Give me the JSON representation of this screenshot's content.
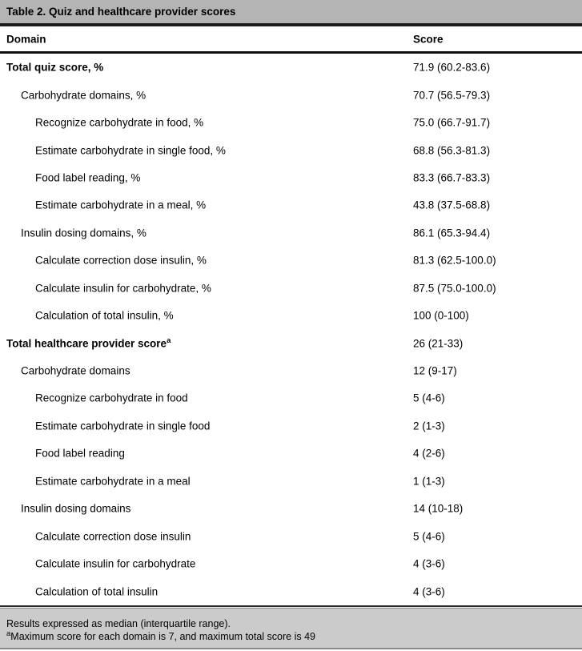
{
  "table": {
    "title": "Table 2. Quiz and healthcare provider scores",
    "columns": [
      "Domain",
      "Score"
    ]
  },
  "rows": [
    {
      "label": "Total quiz score, %",
      "score": "71.9 (60.2-83.6)",
      "level": 0,
      "bold": true
    },
    {
      "label": "Carbohydrate domains, %",
      "score": "70.7 (56.5-79.3)",
      "level": 1,
      "bold": false
    },
    {
      "label": "Recognize carbohydrate in food, %",
      "score": "75.0 (66.7-91.7)",
      "level": 2,
      "bold": false
    },
    {
      "label": "Estimate carbohydrate in single food, %",
      "score": "68.8 (56.3-81.3)",
      "level": 2,
      "bold": false
    },
    {
      "label": "Food label reading, %",
      "score": "83.3 (66.7-83.3)",
      "level": 2,
      "bold": false
    },
    {
      "label": "Estimate carbohydrate in a meal, %",
      "score": "43.8 (37.5-68.8)",
      "level": 2,
      "bold": false
    },
    {
      "label": "Insulin dosing domains, %",
      "score": "86.1 (65.3-94.4)",
      "level": 1,
      "bold": false
    },
    {
      "label": "Calculate correction dose insulin, %",
      "score": "81.3 (62.5-100.0)",
      "level": 2,
      "bold": false
    },
    {
      "label": "Calculate insulin for carbohydrate, %",
      "score": "87.5 (75.0-100.0)",
      "level": 2,
      "bold": false
    },
    {
      "label": "Calculation of total insulin, %",
      "score": "100 (0-100)",
      "level": 2,
      "bold": false
    },
    {
      "label": "Total healthcare provider score",
      "sup": "a",
      "score": "26 (21-33)",
      "level": 0,
      "bold": true
    },
    {
      "label": "Carbohydrate domains",
      "score": "12 (9-17)",
      "level": 1,
      "bold": false
    },
    {
      "label": "Recognize carbohydrate in food",
      "score": "5 (4-6)",
      "level": 2,
      "bold": false
    },
    {
      "label": "Estimate carbohydrate in single food",
      "score": "2 (1-3)",
      "level": 2,
      "bold": false
    },
    {
      "label": "Food label reading",
      "score": "4 (2-6)",
      "level": 2,
      "bold": false
    },
    {
      "label": "Estimate carbohydrate in a meal",
      "score": "1 (1-3)",
      "level": 2,
      "bold": false
    },
    {
      "label": "Insulin dosing domains",
      "score": "14 (10-18)",
      "level": 1,
      "bold": false
    },
    {
      "label": "Calculate correction dose insulin",
      "score": "5 (4-6)",
      "level": 2,
      "bold": false
    },
    {
      "label": "Calculate insulin for carbohydrate",
      "score": "4 (3-6)",
      "level": 2,
      "bold": false
    },
    {
      "label": "Calculation of total insulin",
      "score": "4 (3-6)",
      "level": 2,
      "bold": false
    }
  ],
  "footnotes": [
    {
      "text": "Results expressed as median (interquartile range)."
    },
    {
      "sup": "a",
      "text": "Maximum score for each domain is 7, and maximum total score is 49"
    }
  ],
  "colors": {
    "title_bar_bg": "#b4b4b4",
    "footer_bg": "#cbcbcb",
    "rule": "#1c1c1c"
  }
}
